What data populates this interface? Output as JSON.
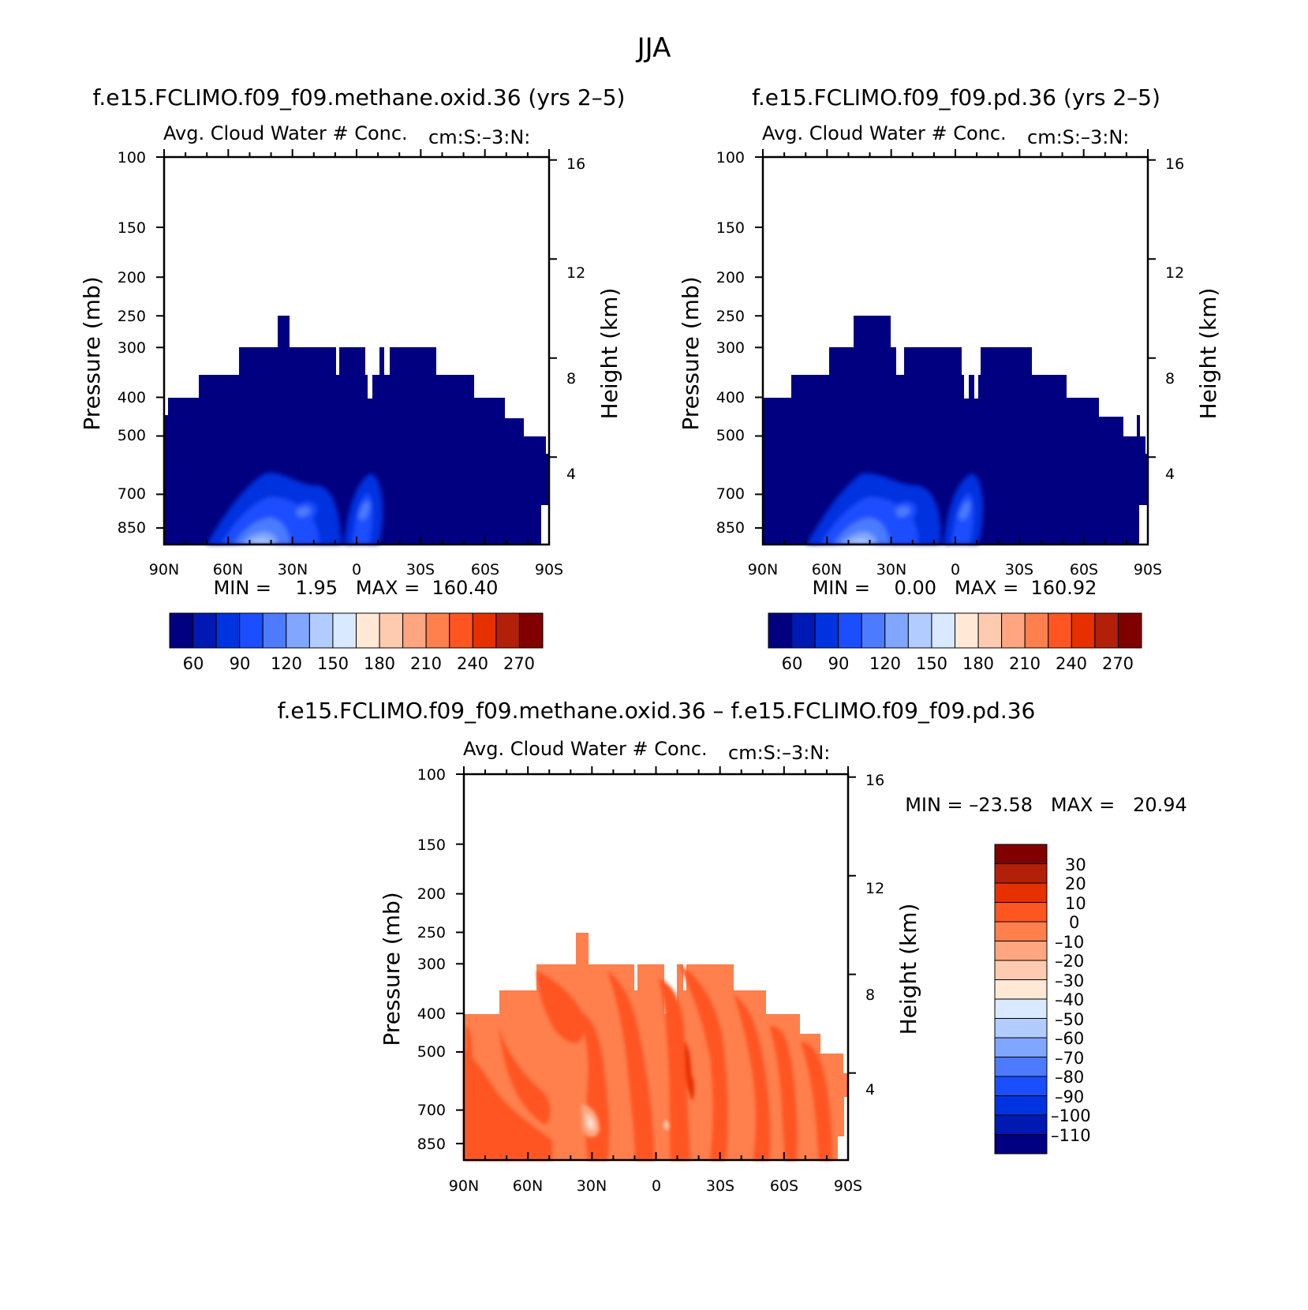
{
  "figure": {
    "title": "JJA"
  },
  "colors": {
    "blue_scale": [
      "#000080",
      "#0019B3",
      "#0033E0",
      "#1A4EFF",
      "#4C7BFF",
      "#80A6FF",
      "#B3CCFF",
      "#D9E9FF"
    ],
    "red_scale": [
      "#FFE8D6",
      "#FFCBB0",
      "#FFA680",
      "#FF7F4D",
      "#FF5520",
      "#E63000",
      "#B3200A",
      "#800000"
    ]
  },
  "chart_data": [
    {
      "type": "heatmap",
      "title": "f.e15.FCLIMO.f09_f09.methane.oxid.36 (yrs 2–5)",
      "subtitle": "Avg. Cloud Water # Conc.",
      "annotation": "cm:S:–3:N:",
      "ylabel": "Pressure (mb)",
      "ylabel_right": "Height (km)",
      "x_ticks": [
        "90N",
        "60N",
        "30N",
        "0",
        "30S",
        "60S",
        "90S"
      ],
      "y_ticks": [
        "100",
        "150",
        "200",
        "250",
        "300",
        "400",
        "500",
        "700",
        "850"
      ],
      "y_ticks_right": [
        "16",
        "12",
        "8",
        "4"
      ],
      "stats": "MIN =    1.95   MAX =  160.40",
      "colorbar_labels": [
        "60",
        "90",
        "120",
        "150",
        "180",
        "210",
        "240",
        "270"
      ],
      "min": 1.95,
      "max": 160.4
    },
    {
      "type": "heatmap",
      "title": "f.e15.FCLIMO.f09_f09.pd.36 (yrs 2–5)",
      "subtitle": "Avg. Cloud Water # Conc.",
      "annotation": "cm:S:–3:N:",
      "ylabel": "Pressure (mb)",
      "ylabel_right": "Height (km)",
      "x_ticks": [
        "90N",
        "60N",
        "30N",
        "0",
        "30S",
        "60S",
        "90S"
      ],
      "y_ticks": [
        "100",
        "150",
        "200",
        "250",
        "300",
        "400",
        "500",
        "700",
        "850"
      ],
      "y_ticks_right": [
        "16",
        "12",
        "8",
        "4"
      ],
      "stats": "MIN =    0.00   MAX =  160.92",
      "colorbar_labels": [
        "60",
        "90",
        "120",
        "150",
        "180",
        "210",
        "240",
        "270"
      ],
      "min": 0.0,
      "max": 160.92
    },
    {
      "type": "heatmap",
      "title": "f.e15.FCLIMO.f09_f09.methane.oxid.36 – f.e15.FCLIMO.f09_f09.pd.36",
      "subtitle": "Avg. Cloud Water # Conc.",
      "annotation": "cm:S:–3:N:",
      "ylabel": "Pressure (mb)",
      "ylabel_right": "Height (km)",
      "x_ticks": [
        "90N",
        "60N",
        "30N",
        "0",
        "30S",
        "60S",
        "90S"
      ],
      "y_ticks": [
        "100",
        "150",
        "200",
        "250",
        "300",
        "400",
        "500",
        "700",
        "850"
      ],
      "y_ticks_right": [
        "16",
        "12",
        "8",
        "4"
      ],
      "stats": "MIN = –23.58   MAX =   20.94",
      "colorbar_labels": [
        "30",
        "20",
        "10",
        "0",
        "–10",
        "–20",
        "–30",
        "–40",
        "–50",
        "–60",
        "–70",
        "–80",
        "–90",
        "–100",
        "–110"
      ],
      "min": -23.58,
      "max": 20.94
    }
  ]
}
